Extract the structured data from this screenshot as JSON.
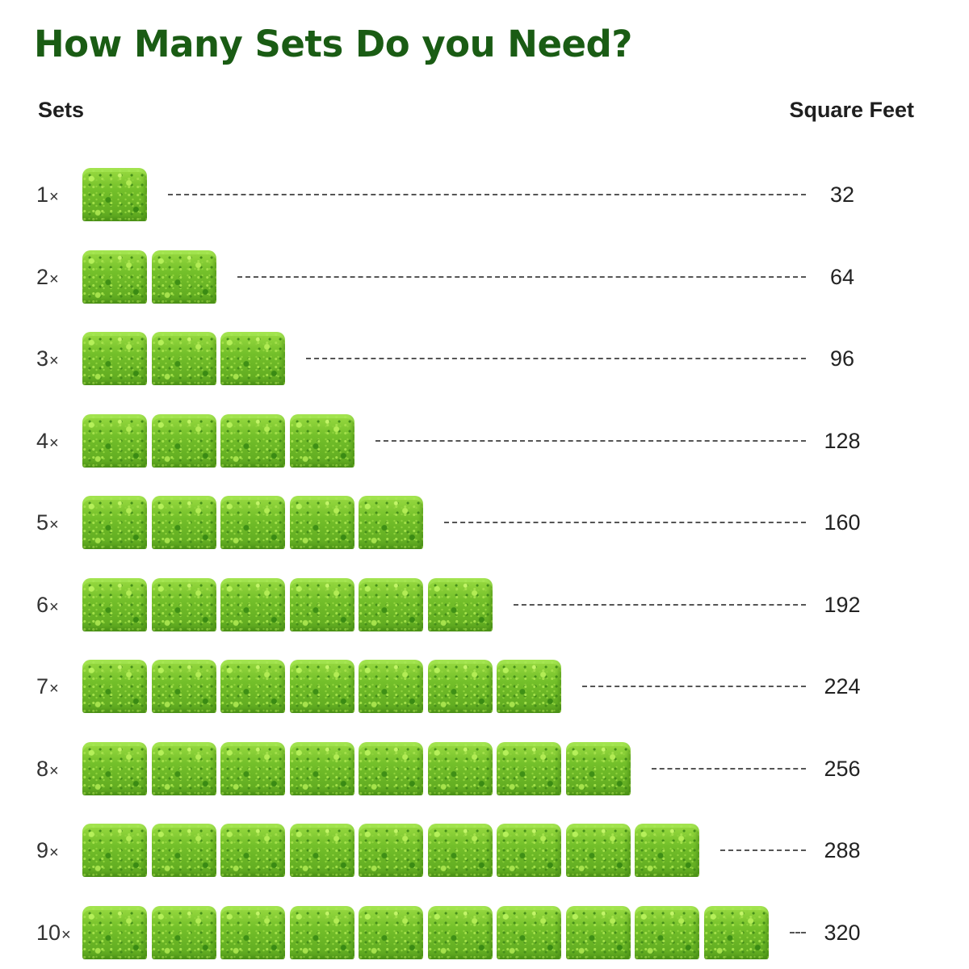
{
  "title": "How Many Sets Do you Need?",
  "headers": {
    "sets": "Sets",
    "square_feet": "Square Feet"
  },
  "multiplier_symbol": "×",
  "tile_icon": "artificial-grass-panel",
  "colors": {
    "title": "#1a5c14",
    "grass_light": "#9bdc42",
    "grass_dark": "#5ca61f",
    "leader_line": "#555555"
  },
  "rows": [
    {
      "sets": "1",
      "square_feet": "32"
    },
    {
      "sets": "2",
      "square_feet": "64"
    },
    {
      "sets": "3",
      "square_feet": "96"
    },
    {
      "sets": "4",
      "square_feet": "128"
    },
    {
      "sets": "5",
      "square_feet": "160"
    },
    {
      "sets": "6",
      "square_feet": "192"
    },
    {
      "sets": "7",
      "square_feet": "224"
    },
    {
      "sets": "8",
      "square_feet": "256"
    },
    {
      "sets": "9",
      "square_feet": "288"
    },
    {
      "sets": "10",
      "square_feet": "320"
    }
  ]
}
